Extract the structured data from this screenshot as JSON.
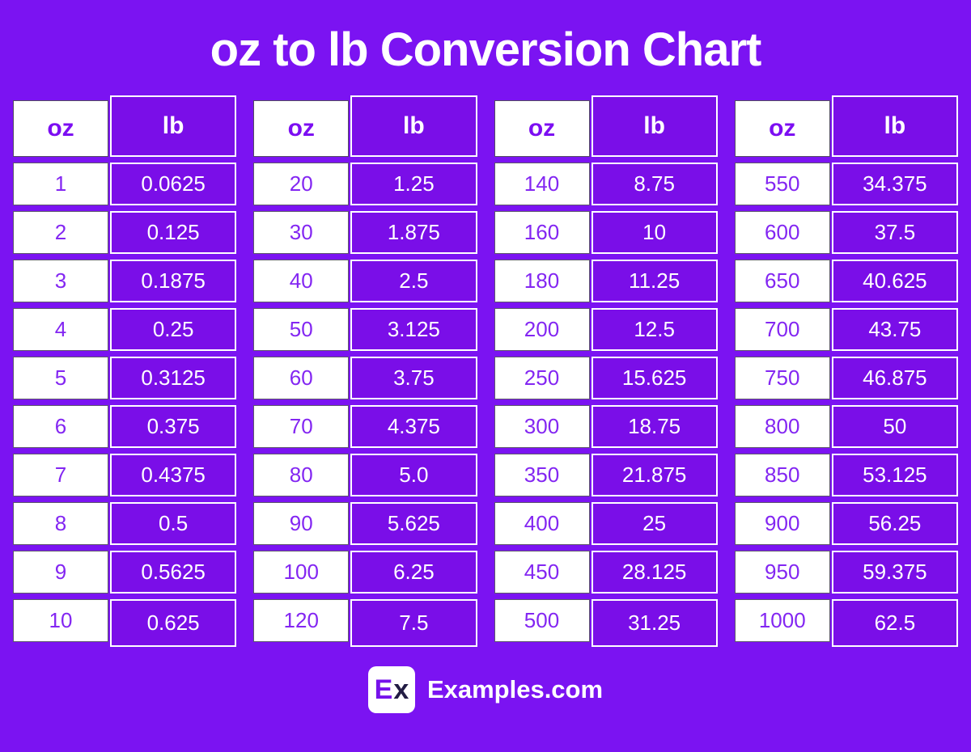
{
  "chart_data": {
    "type": "table",
    "title": "oz to lb Conversion Chart",
    "tables": [
      {
        "headers": [
          "oz",
          "lb"
        ],
        "rows": [
          [
            "1",
            "0.0625"
          ],
          [
            "2",
            "0.125"
          ],
          [
            "3",
            "0.1875"
          ],
          [
            "4",
            "0.25"
          ],
          [
            "5",
            "0.3125"
          ],
          [
            "6",
            "0.375"
          ],
          [
            "7",
            "0.4375"
          ],
          [
            "8",
            "0.5"
          ],
          [
            "9",
            "0.5625"
          ],
          [
            "10",
            "0.625"
          ]
        ]
      },
      {
        "headers": [
          "oz",
          "lb"
        ],
        "rows": [
          [
            "20",
            "1.25"
          ],
          [
            "30",
            "1.875"
          ],
          [
            "40",
            "2.5"
          ],
          [
            "50",
            "3.125"
          ],
          [
            "60",
            "3.75"
          ],
          [
            "70",
            "4.375"
          ],
          [
            "80",
            "5.0"
          ],
          [
            "90",
            "5.625"
          ],
          [
            "100",
            "6.25"
          ],
          [
            "120",
            "7.5"
          ]
        ]
      },
      {
        "headers": [
          "oz",
          "lb"
        ],
        "rows": [
          [
            "140",
            "8.75"
          ],
          [
            "160",
            "10"
          ],
          [
            "180",
            "11.25"
          ],
          [
            "200",
            "12.5"
          ],
          [
            "250",
            "15.625"
          ],
          [
            "300",
            "18.75"
          ],
          [
            "350",
            "21.875"
          ],
          [
            "400",
            "25"
          ],
          [
            "450",
            "28.125"
          ],
          [
            "500",
            "31.25"
          ]
        ]
      },
      {
        "headers": [
          "oz",
          "lb"
        ],
        "rows": [
          [
            "550",
            "34.375"
          ],
          [
            "600",
            "37.5"
          ],
          [
            "650",
            "40.625"
          ],
          [
            "700",
            "43.75"
          ],
          [
            "750",
            "46.875"
          ],
          [
            "800",
            "50"
          ],
          [
            "850",
            "53.125"
          ],
          [
            "900",
            "56.25"
          ],
          [
            "950",
            "59.375"
          ],
          [
            "1000",
            "62.5"
          ]
        ]
      }
    ]
  },
  "footer": {
    "logo_e": "E",
    "logo_x": "x",
    "site_label": "Examples.com"
  },
  "colors": {
    "background": "#7B13F2",
    "lb_cell_fill": "#7A0EE8",
    "oz_text": "#8326F2",
    "white": "#FFFFFF",
    "logo_e": "#7612EB",
    "logo_x": "#221C44"
  }
}
